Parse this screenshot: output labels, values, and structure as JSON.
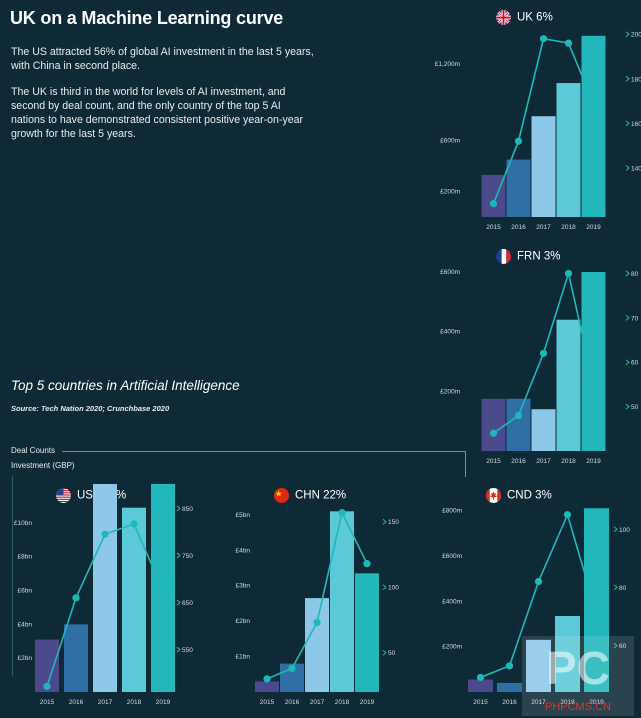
{
  "header": {
    "title": "UK on a Machine Learning curve",
    "paragraph1": "The US attracted 56% of global AI investment in the last 5 years, with China in second place.",
    "paragraph2": "The UK is third in the world for levels of AI investment, and second by deal count, and the only country of the top 5 AI nations to have demonstrated consistent positive year-on-year growth for the last 5 years."
  },
  "section": {
    "title": "Top 5 countries in Artificial Intelligence",
    "source": "Source: Tech Nation 2020; Crunchbase 2020"
  },
  "legend": {
    "deal_counts": "Deal Counts",
    "investment": "Investment (GBP)"
  },
  "colors": {
    "background": "#0e2a36",
    "bar_2015": "#4a4a8c",
    "bar_2016": "#2f6fa6",
    "bar_2017": "#8ec8e8",
    "bar_2018": "#5ccad6",
    "bar_2019": "#22b7bb",
    "line": "#1fb8b8"
  },
  "watermark": {
    "big": "PC",
    "small": "PHPCMS.CN"
  },
  "chart_data": [
    {
      "id": "uk",
      "type": "bar",
      "title": "UK 6%",
      "flag": "uk-flag-icon",
      "categories": [
        "2015",
        "2016",
        "2017",
        "2018",
        "2019"
      ],
      "series": [
        {
          "values": [
            330,
            450,
            790,
            1050,
            1420
          ]
        },
        {
          "values": [
            124,
            152,
            198,
            196,
            169
          ]
        }
      ],
      "left_ticks": [
        "£200m",
        "£600m",
        "£1,200m"
      ],
      "left_tick_values": [
        200,
        600,
        1200
      ],
      "left_ylim": [
        0,
        1450
      ],
      "right_ticks": [
        "140",
        "160",
        "180",
        "200"
      ],
      "right_tick_values": [
        140,
        160,
        180,
        200
      ],
      "right_ylim": [
        118,
        201
      ]
    },
    {
      "id": "frn",
      "type": "bar",
      "title": "FRN 3%",
      "flag": "fr-flag-icon",
      "categories": [
        "2015",
        "2016",
        "2017",
        "2018",
        "2019"
      ],
      "series": [
        {
          "values": [
            175,
            175,
            140,
            440,
            600
          ]
        },
        {
          "values": [
            44,
            48,
            62,
            80,
            55
          ]
        }
      ],
      "left_ticks": [
        "£200m",
        "£400m",
        "£600m"
      ],
      "left_tick_values": [
        200,
        400,
        600
      ],
      "left_ylim": [
        0,
        610
      ],
      "right_ticks": [
        "50",
        "60",
        "70",
        "80"
      ],
      "right_tick_values": [
        50,
        60,
        70,
        80
      ],
      "right_ylim": [
        40,
        81
      ]
    },
    {
      "id": "usa",
      "type": "bar",
      "title": "USA 56%",
      "flag": "us-flag-icon",
      "categories": [
        "2015",
        "2016",
        "2017",
        "2018",
        "2019"
      ],
      "series": [
        {
          "values": [
            3.1,
            4.0,
            12.8,
            10.9,
            16.8
          ]
        },
        {
          "values": [
            472,
            660,
            795,
            817,
            675
          ]
        }
      ],
      "left_ticks": [
        "£2bn",
        "£4bn",
        "£6bn",
        "£8bn",
        "£10bn"
      ],
      "left_tick_values": [
        2,
        4,
        6,
        8,
        10
      ],
      "left_ylim": [
        0,
        11
      ],
      "right_ticks": [
        "550",
        "650",
        "750",
        "850"
      ],
      "right_tick_values": [
        550,
        650,
        750,
        850
      ],
      "right_ylim": [
        460,
        855
      ]
    },
    {
      "id": "chn",
      "type": "bar",
      "title": "CHN 22%",
      "flag": "cn-flag-icon",
      "categories": [
        "2015",
        "2016",
        "2017",
        "2018",
        "2019"
      ],
      "series": [
        {
          "values": [
            0.3,
            0.8,
            2.65,
            5.1,
            3.35
          ]
        },
        {
          "values": [
            30,
            38,
            73,
            157,
            118
          ]
        }
      ],
      "left_ticks": [
        "£1bn",
        "£2bn",
        "£3bn",
        "£4bn",
        "£5bn"
      ],
      "left_tick_values": [
        1,
        2,
        3,
        4,
        5
      ],
      "left_ylim": [
        0,
        5.25
      ],
      "right_ticks": [
        "50",
        "100",
        "150"
      ],
      "right_tick_values": [
        50,
        100,
        150
      ],
      "right_ylim": [
        20,
        162
      ]
    },
    {
      "id": "cnd",
      "type": "bar",
      "title": "CND 3%",
      "flag": "ca-flag-icon",
      "categories": [
        "2015",
        "2016",
        "2017",
        "2018",
        "2019"
      ],
      "series": [
        {
          "values": [
            55,
            40,
            230,
            335,
            810
          ]
        },
        {
          "values": [
            49,
            53,
            82,
            105,
            71
          ]
        }
      ],
      "left_ticks": [
        "£200m",
        "£400m",
        "£600m",
        "£800m"
      ],
      "left_tick_values": [
        200,
        400,
        600,
        800
      ],
      "left_ylim": [
        0,
        820
      ],
      "right_ticks": [
        "60",
        "80",
        "100"
      ],
      "right_tick_values": [
        60,
        80,
        100
      ],
      "right_ylim": [
        44,
        108
      ]
    }
  ]
}
